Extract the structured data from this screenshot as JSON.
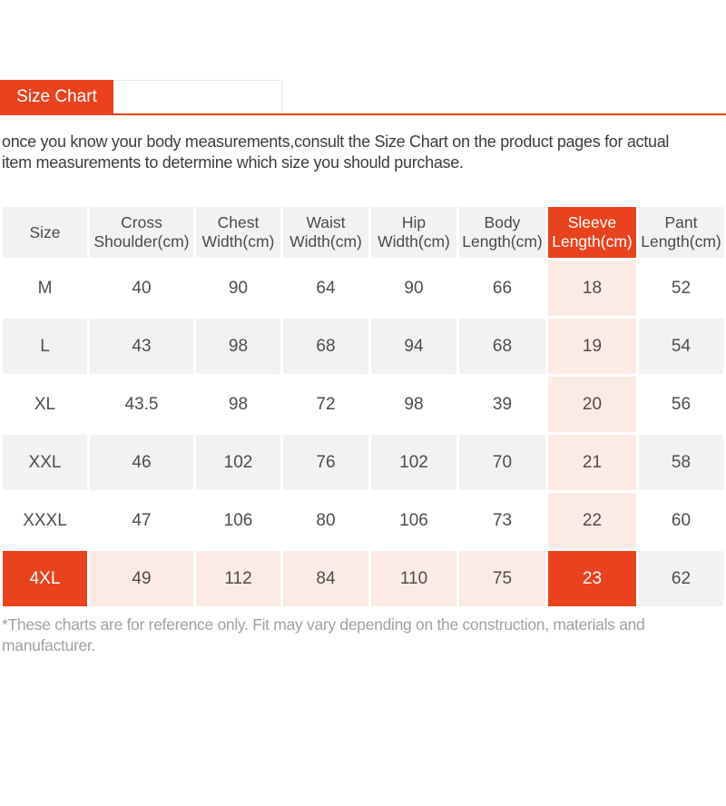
{
  "colors": {
    "accent": "#e8421f",
    "highlight_light": "#fcebe4",
    "cell_gray": "#f2f2f2"
  },
  "tabs": {
    "size_chart_label": "Size Chart"
  },
  "intro": {
    "lines": [
      "once you know your body measurements,consult the Size Chart on the product pages for actual",
      "item measurements to determine which size you should purchase."
    ]
  },
  "table": {
    "columns": [
      {
        "id": "size",
        "label_lines": [
          "Size"
        ]
      },
      {
        "id": "cross_shoulder",
        "label_lines": [
          "Cross",
          "Shoulder(cm)"
        ]
      },
      {
        "id": "chest",
        "label_lines": [
          "Chest",
          "Width(cm)"
        ]
      },
      {
        "id": "waist",
        "label_lines": [
          "Waist",
          "Width(cm)"
        ]
      },
      {
        "id": "hip",
        "label_lines": [
          "Hip",
          "Width(cm)"
        ]
      },
      {
        "id": "body",
        "label_lines": [
          "Body",
          "Length(cm)"
        ]
      },
      {
        "id": "sleeve",
        "label_lines": [
          "Sleeve",
          "Length(cm)"
        ],
        "highlighted": true
      },
      {
        "id": "pant",
        "label_lines": [
          "Pant",
          "Length(cm)"
        ]
      }
    ],
    "rows": [
      {
        "size": "M",
        "values": [
          "40",
          "90",
          "64",
          "90",
          "66",
          "18",
          "52"
        ]
      },
      {
        "size": "L",
        "values": [
          "43",
          "98",
          "68",
          "94",
          "68",
          "19",
          "54"
        ]
      },
      {
        "size": "XL",
        "values": [
          "43.5",
          "98",
          "72",
          "98",
          "39",
          "20",
          "56"
        ]
      },
      {
        "size": "XXL",
        "values": [
          "46",
          "102",
          "76",
          "102",
          "70",
          "21",
          "58"
        ]
      },
      {
        "size": "XXXL",
        "values": [
          "47",
          "106",
          "80",
          "106",
          "73",
          "22",
          "60"
        ]
      },
      {
        "size": "4XL",
        "values": [
          "49",
          "112",
          "84",
          "110",
          "75",
          "23",
          "62"
        ],
        "highlighted": true
      }
    ]
  },
  "footer": {
    "lines": [
      "*These charts are for reference only. Fit may vary depending on the construction, materials and",
      "manufacturer."
    ]
  }
}
